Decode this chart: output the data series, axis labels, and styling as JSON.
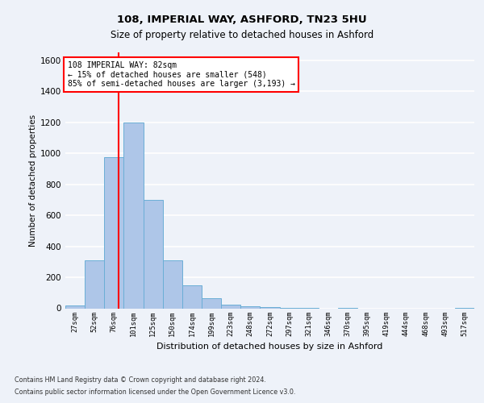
{
  "title1": "108, IMPERIAL WAY, ASHFORD, TN23 5HU",
  "title2": "Size of property relative to detached houses in Ashford",
  "xlabel": "Distribution of detached houses by size in Ashford",
  "ylabel": "Number of detached properties",
  "categories": [
    "27sqm",
    "52sqm",
    "76sqm",
    "101sqm",
    "125sqm",
    "150sqm",
    "174sqm",
    "199sqm",
    "223sqm",
    "248sqm",
    "272sqm",
    "297sqm",
    "321sqm",
    "346sqm",
    "370sqm",
    "395sqm",
    "419sqm",
    "444sqm",
    "468sqm",
    "493sqm",
    "517sqm"
  ],
  "values": [
    20,
    310,
    975,
    1200,
    700,
    310,
    150,
    65,
    25,
    15,
    10,
    5,
    2,
    0,
    4,
    0,
    0,
    0,
    0,
    0,
    5
  ],
  "bar_color": "#aec6e8",
  "bar_edge_color": "#6aaed6",
  "annotation_text": "108 IMPERIAL WAY: 82sqm\n← 15% of detached houses are smaller (548)\n85% of semi-detached houses are larger (3,193) →",
  "annotation_box_color": "white",
  "annotation_box_edge_color": "red",
  "ylim": [
    0,
    1650
  ],
  "yticks": [
    0,
    200,
    400,
    600,
    800,
    1000,
    1200,
    1400,
    1600
  ],
  "footer_line1": "Contains HM Land Registry data © Crown copyright and database right 2024.",
  "footer_line2": "Contains public sector information licensed under the Open Government Licence v3.0.",
  "bg_color": "#eef2f9",
  "plot_bg_color": "#eef2f9",
  "grid_color": "#ffffff"
}
